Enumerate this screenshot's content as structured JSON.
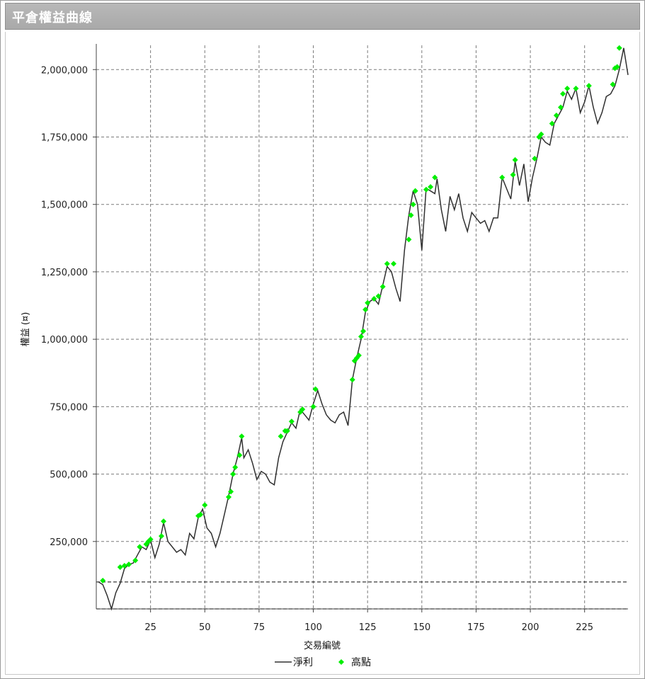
{
  "window": {
    "title": "平倉權益曲線"
  },
  "chart_data": {
    "type": "line",
    "title": "",
    "xlabel": "交易編號",
    "ylabel": "權益 (¤)",
    "xlim": [
      0,
      245
    ],
    "ylim": [
      0,
      2090000
    ],
    "xticks": [
      25,
      50,
      75,
      100,
      125,
      150,
      175,
      200,
      225
    ],
    "yticks": [
      250000,
      500000,
      750000,
      1000000,
      1250000,
      1500000,
      1750000,
      2000000
    ],
    "ytick_labels": [
      "250,000",
      "500,000",
      "750,000",
      "1,000,000",
      "1,250,000",
      "1,500,000",
      "1,750,000",
      "2,000,000"
    ],
    "grid": true,
    "baseline": 100000,
    "legend": {
      "placement": "bottom-center",
      "line_label": "淨利",
      "marker_label": "高點"
    },
    "colors": {
      "line": "#303030",
      "marker": "#00ee00",
      "grid": "#7a7a7a"
    },
    "series": [
      {
        "name": "淨利",
        "x": [
          1,
          3,
          5,
          7,
          9,
          11,
          13,
          15,
          17,
          19,
          21,
          23,
          25,
          27,
          29,
          31,
          33,
          35,
          37,
          39,
          41,
          43,
          45,
          47,
          49,
          51,
          53,
          55,
          57,
          59,
          61,
          63,
          65,
          67,
          68,
          70,
          72,
          74,
          76,
          78,
          80,
          82,
          84,
          86,
          88,
          90,
          92,
          94,
          96,
          98,
          100,
          102,
          104,
          106,
          108,
          110,
          112,
          114,
          116,
          118,
          120,
          122,
          124,
          126,
          128,
          130,
          132,
          134,
          136,
          138,
          140,
          142,
          144,
          146,
          148,
          150,
          152,
          154,
          156,
          157,
          159,
          161,
          163,
          165,
          167,
          169,
          171,
          173,
          175,
          177,
          179,
          181,
          183,
          185,
          187,
          189,
          191,
          193,
          195,
          197,
          199,
          201,
          203,
          205,
          207,
          209,
          211,
          213,
          215,
          217,
          219,
          221,
          223,
          225,
          227,
          229,
          231,
          233,
          235,
          237,
          239,
          241,
          243,
          245
        ],
        "y": [
          100000,
          90000,
          50000,
          0,
          60000,
          95000,
          150000,
          165000,
          170000,
          200000,
          230000,
          220000,
          255000,
          190000,
          240000,
          320000,
          250000,
          230000,
          210000,
          220000,
          200000,
          280000,
          260000,
          340000,
          370000,
          300000,
          280000,
          230000,
          280000,
          350000,
          420000,
          500000,
          560000,
          635000,
          560000,
          590000,
          540000,
          480000,
          510000,
          500000,
          470000,
          460000,
          560000,
          620000,
          655000,
          690000,
          670000,
          740000,
          720000,
          700000,
          760000,
          810000,
          760000,
          720000,
          700000,
          690000,
          720000,
          730000,
          680000,
          850000,
          930000,
          1000000,
          1100000,
          1140000,
          1150000,
          1130000,
          1200000,
          1270000,
          1250000,
          1190000,
          1140000,
          1330000,
          1460000,
          1550000,
          1500000,
          1330000,
          1560000,
          1550000,
          1540000,
          1595000,
          1480000,
          1400000,
          1530000,
          1480000,
          1540000,
          1450000,
          1400000,
          1470000,
          1450000,
          1430000,
          1440000,
          1400000,
          1450000,
          1450000,
          1600000,
          1560000,
          1520000,
          1660000,
          1570000,
          1650000,
          1510000,
          1600000,
          1670000,
          1750000,
          1730000,
          1720000,
          1800000,
          1830000,
          1860000,
          1920000,
          1890000,
          1930000,
          1840000,
          1880000,
          1940000,
          1860000,
          1800000,
          1840000,
          1900000,
          1910000,
          1940000,
          2000000,
          2080000,
          1980000
        ]
      },
      {
        "name": "高點",
        "x": [
          3,
          11,
          13,
          15,
          18,
          20,
          23,
          24,
          25,
          30,
          31,
          47,
          48,
          50,
          61,
          62,
          63,
          64,
          66,
          67,
          85,
          87,
          88,
          90,
          94,
          95,
          100,
          101,
          118,
          119,
          120,
          121,
          122,
          123,
          124,
          125,
          128,
          130,
          132,
          134,
          137,
          144,
          145,
          146,
          147,
          152,
          154,
          156,
          187,
          192,
          193,
          202,
          204,
          205,
          210,
          212,
          214,
          215,
          217,
          221,
          227,
          238,
          239,
          240,
          241
        ],
        "y": [
          105000,
          155000,
          160000,
          165000,
          180000,
          230000,
          240000,
          250000,
          258000,
          270000,
          325000,
          345000,
          350000,
          385000,
          415000,
          435000,
          500000,
          525000,
          570000,
          640000,
          640000,
          660000,
          660000,
          695000,
          730000,
          740000,
          750000,
          815000,
          850000,
          920000,
          930000,
          940000,
          1010000,
          1030000,
          1110000,
          1135000,
          1150000,
          1160000,
          1195000,
          1280000,
          1280000,
          1370000,
          1460000,
          1500000,
          1550000,
          1555000,
          1565000,
          1600000,
          1600000,
          1610000,
          1665000,
          1670000,
          1750000,
          1760000,
          1800000,
          1830000,
          1860000,
          1910000,
          1930000,
          1930000,
          1940000,
          1945000,
          2005000,
          2010000,
          2080000
        ]
      }
    ]
  }
}
